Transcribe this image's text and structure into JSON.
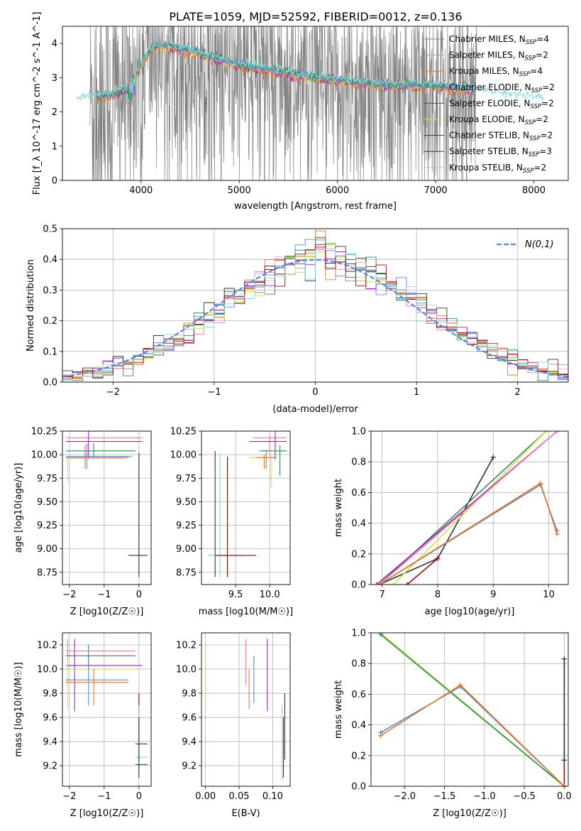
{
  "figure_title": "PLATE=1059, MJD=52592, FIBERID=0012, z=0.136",
  "colors": {
    "chabrier_miles": "#5b86e0",
    "salpeter_miles": "#f07fa0",
    "kroupa_miles": "#ea7a22",
    "chabrier_elodie": "#2e8b57",
    "salpeter_elodie": "#a020c0",
    "kroupa_elodie": "#c8e840",
    "chabrier_stelib": "#333333",
    "salpeter_stelib": "#b00000",
    "kroupa_stelib": "#80d8d8",
    "data": "#808080"
  },
  "legend_spectrum": [
    {
      "key": "chabrier_miles",
      "label": "Chabrier MILES, N",
      "sub": "SSP",
      "eq": "=4"
    },
    {
      "key": "salpeter_miles",
      "label": "Salpeter MILES, N",
      "sub": "SSP",
      "eq": "=2"
    },
    {
      "key": "kroupa_miles",
      "label": "Kroupa MILES, N",
      "sub": "SSP",
      "eq": "=4"
    },
    {
      "key": "chabrier_elodie",
      "label": "Chabrier ELODIE, N",
      "sub": "SSP",
      "eq": "=2"
    },
    {
      "key": "salpeter_elodie",
      "label": "Salpeter ELODIE, N",
      "sub": "SSP",
      "eq": "=2"
    },
    {
      "key": "kroupa_elodie",
      "label": "Kroupa ELODIE, N",
      "sub": "SSP",
      "eq": "=2"
    },
    {
      "key": "chabrier_stelib",
      "label": "Chabrier STELIB, N",
      "sub": "SSP",
      "eq": "=2"
    },
    {
      "key": "salpeter_stelib",
      "label": "Salpeter STELIB, N",
      "sub": "SSP",
      "eq": "=3"
    },
    {
      "key": "kroupa_stelib",
      "label": "Kroupa STELIB, N",
      "sub": "SSP",
      "eq": "=2"
    }
  ],
  "chart_data": [
    {
      "id": "spectrum",
      "type": "line",
      "xlabel": "wavelength [Angstrom, rest frame]",
      "ylabel": "Flux [f_λ 10^-17 erg cm^-2 s^-1 A^-1]",
      "xlim": [
        3200,
        8350
      ],
      "ylim": [
        0,
        4.5
      ],
      "xticks": [
        4000,
        5000,
        6000,
        7000,
        8000
      ],
      "yticks": [
        0,
        1,
        2,
        3,
        4
      ],
      "grid": false,
      "legend": "top-right",
      "continuum": {
        "x": [
          3300,
          3500,
          3700,
          3800,
          3900,
          4000,
          4100,
          4200,
          4500,
          5000,
          5500,
          6000,
          6500,
          7000,
          7500,
          8000,
          8100
        ],
        "y": [
          2.25,
          2.35,
          2.4,
          2.55,
          2.8,
          3.3,
          3.75,
          3.9,
          3.7,
          3.3,
          3.05,
          2.85,
          2.7,
          2.7,
          2.5,
          2.3,
          2.25
        ]
      }
    },
    {
      "id": "residuals",
      "type": "line",
      "xlabel": "(data-model)/error",
      "ylabel": "Normed distribution",
      "xlim": [
        -2.5,
        2.5
      ],
      "ylim": [
        0,
        0.5
      ],
      "xticks": [
        -2,
        -1,
        0,
        1,
        2
      ],
      "yticks": [
        0.0,
        0.1,
        0.2,
        0.3,
        0.4,
        0.5
      ],
      "grid": true,
      "legend": "top-right",
      "legend_label": "N(0,1)",
      "histogram_bin_width": 0.1,
      "normal_curve": {
        "mean": 0,
        "sigma": 1
      }
    },
    {
      "id": "age_vs_Z",
      "type": "scatter",
      "xlabel": "Z [log10(Z/Z☉)]",
      "ylabel": "age [log10(age/yr)]",
      "xlim": [
        -2.2,
        0.35
      ],
      "ylim": [
        8.62,
        10.25
      ],
      "xticks": [
        -2,
        -1,
        0
      ],
      "yticks": [
        8.75,
        9.0,
        9.25,
        9.5,
        9.75,
        10.0,
        10.25
      ],
      "grid": true
    },
    {
      "id": "age_vs_mass",
      "type": "scatter",
      "xlabel": "mass [log10(M/M☉)]",
      "xlim": [
        9.0,
        10.3
      ],
      "ylim": [
        8.62,
        10.25
      ],
      "xticks": [
        9.5,
        10.0
      ],
      "yticks": [
        8.75,
        9.0,
        9.25,
        9.5,
        9.75,
        10.0,
        10.25
      ],
      "grid": true
    },
    {
      "id": "mass_weight_vs_age",
      "type": "line",
      "xlabel": "age [log10(age/yr)]",
      "ylabel": "mass weight",
      "xlim": [
        6.8,
        10.35
      ],
      "ylim": [
        0,
        1.0
      ],
      "xticks": [
        7,
        8,
        9,
        10
      ],
      "yticks": [
        0.0,
        0.2,
        0.4,
        0.6,
        0.8,
        1.0
      ],
      "grid": true,
      "series": [
        {
          "key": "kroupa_stelib",
          "x": [
            6.95,
            8.0,
            9.0
          ],
          "y": [
            0.0,
            0.17,
            0.83
          ]
        },
        {
          "key": "chabrier_stelib",
          "x": [
            6.95,
            8.0,
            9.0
          ],
          "y": [
            0.0,
            0.17,
            0.83
          ]
        },
        {
          "key": "chabrier_elodie",
          "x": [
            6.95,
            9.95
          ],
          "y": [
            0.0,
            1.0
          ]
        },
        {
          "key": "kroupa_elodie",
          "x": [
            7.2,
            9.95
          ],
          "y": [
            0.0,
            1.0
          ]
        },
        {
          "key": "salpeter_elodie",
          "x": [
            6.9,
            10.15
          ],
          "y": [
            0.0,
            1.0
          ]
        },
        {
          "key": "salpeter_miles",
          "x": [
            6.95,
            10.15
          ],
          "y": [
            0.0,
            1.0
          ]
        },
        {
          "key": "salpeter_stelib",
          "x": [
            7.45,
            8.0
          ],
          "y": [
            0.0,
            0.17
          ]
        },
        {
          "key": "chabrier_miles",
          "x": [
            6.95,
            9.85,
            10.15
          ],
          "y": [
            0.0,
            0.65,
            0.35
          ]
        },
        {
          "key": "kroupa_miles",
          "x": [
            6.95,
            9.85,
            10.15
          ],
          "y": [
            0.0,
            0.66,
            0.33
          ]
        }
      ]
    },
    {
      "id": "mass_vs_Z",
      "type": "scatter",
      "xlabel": "Z [log10(Z/Z☉)]",
      "ylabel": "mass [log10(M/M☉)]",
      "xlim": [
        -2.2,
        0.35
      ],
      "ylim": [
        9.03,
        10.3
      ],
      "xticks": [
        -2,
        -1,
        0
      ],
      "yticks": [
        9.2,
        9.4,
        9.6,
        9.8,
        10.0,
        10.2
      ],
      "grid": true
    },
    {
      "id": "mass_vs_EBV",
      "type": "scatter",
      "xlabel": "E(B-V)",
      "xlim": [
        -0.006,
        0.126
      ],
      "ylim": [
        9.03,
        10.3
      ],
      "xticks": [
        0.0,
        0.05,
        0.1
      ],
      "yticks": [
        9.2,
        9.4,
        9.6,
        9.8,
        10.0,
        10.2
      ],
      "grid": true
    },
    {
      "id": "mass_weight_vs_Z",
      "type": "line",
      "xlabel": "Z [log10(Z/Z☉)]",
      "ylabel": "mass weight",
      "xlim": [
        -2.42,
        0.05
      ],
      "ylim": [
        0,
        1.0
      ],
      "xticks": [
        -2.0,
        -1.5,
        -1.0,
        -0.5,
        0.0
      ],
      "yticks": [
        0.0,
        0.2,
        0.4,
        0.6,
        0.8,
        1.0
      ],
      "grid": true,
      "series": [
        {
          "key": "kroupa_elodie",
          "x": [
            -2.3,
            0.0
          ],
          "y": [
            1.0,
            0.0
          ]
        },
        {
          "key": "chabrier_elodie",
          "x": [
            -2.3,
            0.0
          ],
          "y": [
            0.99,
            0.0
          ]
        },
        {
          "key": "salpeter_stelib",
          "x": [
            0.0,
            0.0
          ],
          "y": [
            0.17,
            0.0
          ]
        },
        {
          "key": "chabrier_miles",
          "x": [
            -2.3,
            -1.3,
            0.0
          ],
          "y": [
            0.35,
            0.65,
            0.0
          ]
        },
        {
          "key": "kroupa_miles",
          "x": [
            -2.3,
            -1.3,
            0.0
          ],
          "y": [
            0.33,
            0.66,
            0.0
          ]
        },
        {
          "key": "kroupa_stelib",
          "x": [
            0.0,
            0.0
          ],
          "y": [
            0.17,
            0.83
          ]
        },
        {
          "key": "chabrier_stelib",
          "x": [
            0.0,
            0.0
          ],
          "y": [
            0.17,
            0.83
          ]
        }
      ]
    }
  ]
}
